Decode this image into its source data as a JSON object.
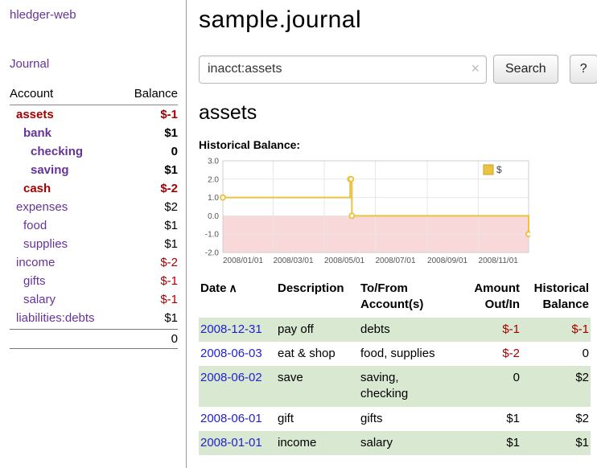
{
  "app": {
    "title": "hledger-web"
  },
  "colors": {
    "purple": "#663399",
    "negred": "#a40000",
    "dateblue": "#2222cc",
    "rowgreen": "#d9e8d0"
  },
  "sidebar": {
    "journal_link": "Journal",
    "accounts_header": {
      "account": "Account",
      "balance": "Balance"
    },
    "accounts": [
      {
        "name": "assets",
        "balance": "$-1",
        "indent": 0,
        "bold": true,
        "name_red": true,
        "balance_red": true
      },
      {
        "name": "bank",
        "balance": "$1",
        "indent": 1,
        "bold": true,
        "name_red": false,
        "balance_red": false
      },
      {
        "name": "checking",
        "balance": "0",
        "indent": 2,
        "bold": true,
        "name_red": false,
        "balance_red": false
      },
      {
        "name": "saving",
        "balance": "$1",
        "indent": 2,
        "bold": true,
        "name_red": false,
        "balance_red": false
      },
      {
        "name": "cash",
        "balance": "$-2",
        "indent": 1,
        "bold": true,
        "name_red": true,
        "balance_red": true
      },
      {
        "name": "expenses",
        "balance": "$2",
        "indent": 0,
        "bold": false,
        "name_red": false,
        "balance_red": false
      },
      {
        "name": "food",
        "balance": "$1",
        "indent": 1,
        "bold": false,
        "name_red": false,
        "balance_red": false
      },
      {
        "name": "supplies",
        "balance": "$1",
        "indent": 1,
        "bold": false,
        "name_red": false,
        "balance_red": false
      },
      {
        "name": "income",
        "balance": "$-2",
        "indent": 0,
        "bold": false,
        "name_red": false,
        "balance_red": true
      },
      {
        "name": "gifts",
        "balance": "$-1",
        "indent": 1,
        "bold": false,
        "name_red": false,
        "balance_red": true
      },
      {
        "name": "salary",
        "balance": "$-1",
        "indent": 1,
        "bold": false,
        "name_red": false,
        "balance_red": true
      },
      {
        "name": "liabilities:debts",
        "balance": "$1",
        "indent": 0,
        "bold": false,
        "name_red": false,
        "balance_red": false
      }
    ],
    "total": "0"
  },
  "header": {
    "title": "sample.journal"
  },
  "search": {
    "value": "inacct:assets",
    "clear_icon": "×",
    "button": "Search",
    "help_button": "?"
  },
  "main": {
    "section_title": "assets",
    "chart_label": "Historical Balance:"
  },
  "chart_data": {
    "type": "line",
    "title": "Historical Balance",
    "legend": [
      {
        "label": "$",
        "color": "#edc240"
      }
    ],
    "legend_position": "top-right",
    "grid": true,
    "x_domain": [
      "2008-01-01",
      "2008-12-31"
    ],
    "ylim": [
      -2.0,
      3.0
    ],
    "yticks": [
      3.0,
      2.0,
      1.0,
      0.0,
      -1.0,
      -2.0
    ],
    "ytick_labels": [
      "3.0",
      "2.0",
      "1.0",
      "0.0",
      "-1.0",
      "-2.0"
    ],
    "xticks": [
      {
        "date": "2008-01-01",
        "label": "2008/01/01"
      },
      {
        "date": "2008-03-01",
        "label": "2008/03/01"
      },
      {
        "date": "2008-05-01",
        "label": "2008/05/01"
      },
      {
        "date": "2008-07-01",
        "label": "2008/07/01"
      },
      {
        "date": "2008-09-01",
        "label": "2008/09/01"
      },
      {
        "date": "2008-11-01",
        "label": "2008/11/01"
      }
    ],
    "negative_region_fill": "#f8d8d8",
    "series": [
      {
        "name": "$",
        "color": "#edc240",
        "step": true,
        "points": [
          {
            "x": "2008-01-01",
            "y": 1
          },
          {
            "x": "2008-06-01",
            "y": 2
          },
          {
            "x": "2008-06-02",
            "y": 2
          },
          {
            "x": "2008-06-03",
            "y": 0
          },
          {
            "x": "2008-12-31",
            "y": -1
          }
        ]
      }
    ]
  },
  "register": {
    "headers": [
      {
        "line1": "Date",
        "line2": "",
        "sort_icon": "∧"
      },
      {
        "line1": "Description",
        "line2": ""
      },
      {
        "line1": "To/From",
        "line2": "Account(s)"
      },
      {
        "line1": "Amount",
        "line2": "Out/In"
      },
      {
        "line1": "Historical",
        "line2": "Balance"
      }
    ],
    "rows": [
      {
        "date": "2008-12-31",
        "description": "pay off",
        "account": "debts",
        "amount": "$-1",
        "balance": "$-1",
        "highlight": true
      },
      {
        "date": "2008-06-03",
        "description": "eat & shop",
        "account": "food, supplies",
        "amount": "$-2",
        "balance": "0",
        "highlight": false
      },
      {
        "date": "2008-06-02",
        "description": "save",
        "account": "saving,\nchecking",
        "amount": "0",
        "balance": "$2",
        "highlight": true
      },
      {
        "date": "2008-06-01",
        "description": "gift",
        "account": "gifts",
        "amount": "$1",
        "balance": "$2",
        "highlight": false
      },
      {
        "date": "2008-01-01",
        "description": "income",
        "account": "salary",
        "amount": "$1",
        "balance": "$1",
        "highlight": true
      }
    ]
  }
}
